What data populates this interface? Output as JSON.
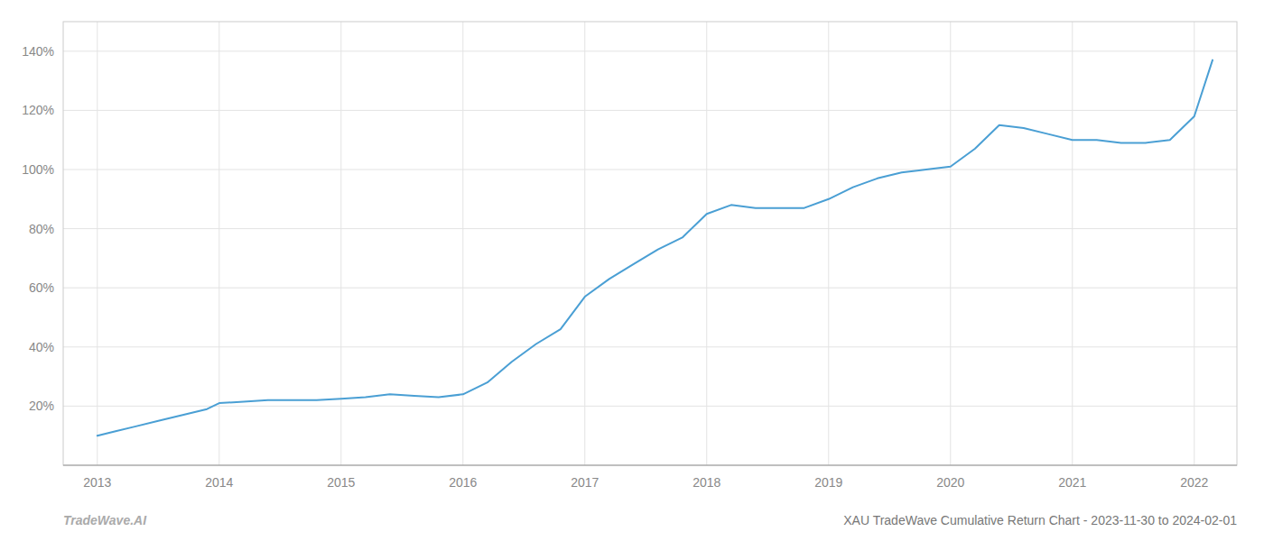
{
  "chart_data": {
    "type": "line",
    "title": "XAU TradeWave Cumulative Return Chart - 2023-11-30 to 2024-02-01",
    "annotations": [
      "TradeWave.AI"
    ],
    "x": [
      2013.0,
      2013.15,
      2013.3,
      2013.5,
      2013.7,
      2013.9,
      2014.0,
      2014.2,
      2014.4,
      2014.6,
      2014.8,
      2015.0,
      2015.2,
      2015.4,
      2015.6,
      2015.8,
      2016.0,
      2016.2,
      2016.4,
      2016.6,
      2016.8,
      2017.0,
      2017.2,
      2017.4,
      2017.6,
      2017.8,
      2018.0,
      2018.2,
      2018.4,
      2018.6,
      2018.8,
      2019.0,
      2019.2,
      2019.4,
      2019.6,
      2019.8,
      2020.0,
      2020.2,
      2020.4,
      2020.6,
      2020.8,
      2021.0,
      2021.2,
      2021.4,
      2021.6,
      2021.8,
      2022.0,
      2022.15
    ],
    "values": [
      10,
      11.5,
      13,
      15,
      17,
      19,
      21,
      21.5,
      22,
      22,
      22,
      22.5,
      23,
      24,
      23.5,
      23,
      24,
      28,
      35,
      41,
      46,
      57,
      63,
      68,
      73,
      77,
      85,
      88,
      87,
      87,
      87,
      90,
      94,
      97,
      99,
      100,
      101,
      107,
      115,
      114,
      112,
      110,
      110,
      109,
      109,
      110,
      118,
      137
    ],
    "color": "#4a9fd4",
    "xlim": [
      2012.72,
      2022.35
    ],
    "ylim": [
      0,
      150
    ],
    "xticks": [
      2013,
      2014,
      2015,
      2016,
      2017,
      2018,
      2019,
      2020,
      2021,
      2022
    ],
    "yticks": [
      {
        "value": 20,
        "label": "20%"
      },
      {
        "value": 40,
        "label": "40%"
      },
      {
        "value": 60,
        "label": "60%"
      },
      {
        "value": 80,
        "label": "80%"
      },
      {
        "value": 100,
        "label": "100%"
      },
      {
        "value": 120,
        "label": "120%"
      },
      {
        "value": 140,
        "label": "140%"
      }
    ],
    "grid": true
  }
}
